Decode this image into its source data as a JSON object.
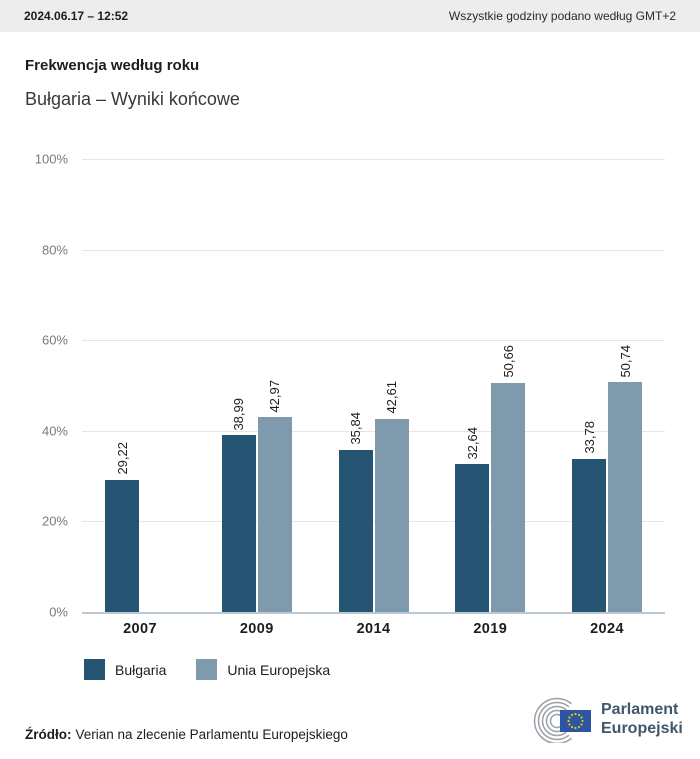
{
  "header": {
    "datetime": "2024.06.17 – 12:52",
    "timezone_note": "Wszystkie godziny podano według GMT+2"
  },
  "chart": {
    "title": "Frekwencja według roku",
    "subtitle": "Bułgaria – Wyniki końcowe"
  },
  "chart_data": {
    "type": "bar",
    "title": "Frekwencja według roku",
    "subtitle": "Bułgaria – Wyniki końcowe",
    "categories": [
      "2007",
      "2009",
      "2014",
      "2019",
      "2024"
    ],
    "series": [
      {
        "name": "Bułgaria",
        "color": "#255573",
        "values": [
          29.22,
          38.99,
          35.84,
          32.64,
          33.78
        ]
      },
      {
        "name": "Unia Europejska",
        "color": "#7f99ad",
        "values": [
          null,
          42.97,
          42.61,
          50.66,
          50.74
        ]
      }
    ],
    "value_labels": [
      [
        "29,22",
        "38,99",
        "35,84",
        "32,64",
        "33,78"
      ],
      [
        null,
        "42,97",
        "42,61",
        "50,66",
        "50,74"
      ]
    ],
    "xlabel": "",
    "ylabel": "",
    "ylim": [
      0,
      100
    ],
    "yticks": [
      {
        "label": "100%",
        "value": 100
      },
      {
        "label": "80%",
        "value": 80
      },
      {
        "label": "60%",
        "value": 60
      },
      {
        "label": "40%",
        "value": 40
      },
      {
        "label": "20%",
        "value": 20
      },
      {
        "label": "0%",
        "value": 0
      }
    ],
    "grid": true,
    "legend_position": "bottom"
  },
  "footer": {
    "source_label": "Źródło:",
    "source_text": "Verian na zlecenie Parlamentu Europejskiego",
    "logo_text_line1": "Parlament",
    "logo_text_line2": "Europejski"
  },
  "colors": {
    "header_bg": "#ecedec",
    "series_bulgaria": "#255573",
    "series_eu": "#7f99ad",
    "gridline": "#e6e6e6",
    "zero_axis": "#b9c8d4",
    "tick_text": "#7a7a7a",
    "eu_flag_blue": "#2c56a4",
    "eu_star_yellow": "#f5c300",
    "logo_text": "#42566b"
  }
}
